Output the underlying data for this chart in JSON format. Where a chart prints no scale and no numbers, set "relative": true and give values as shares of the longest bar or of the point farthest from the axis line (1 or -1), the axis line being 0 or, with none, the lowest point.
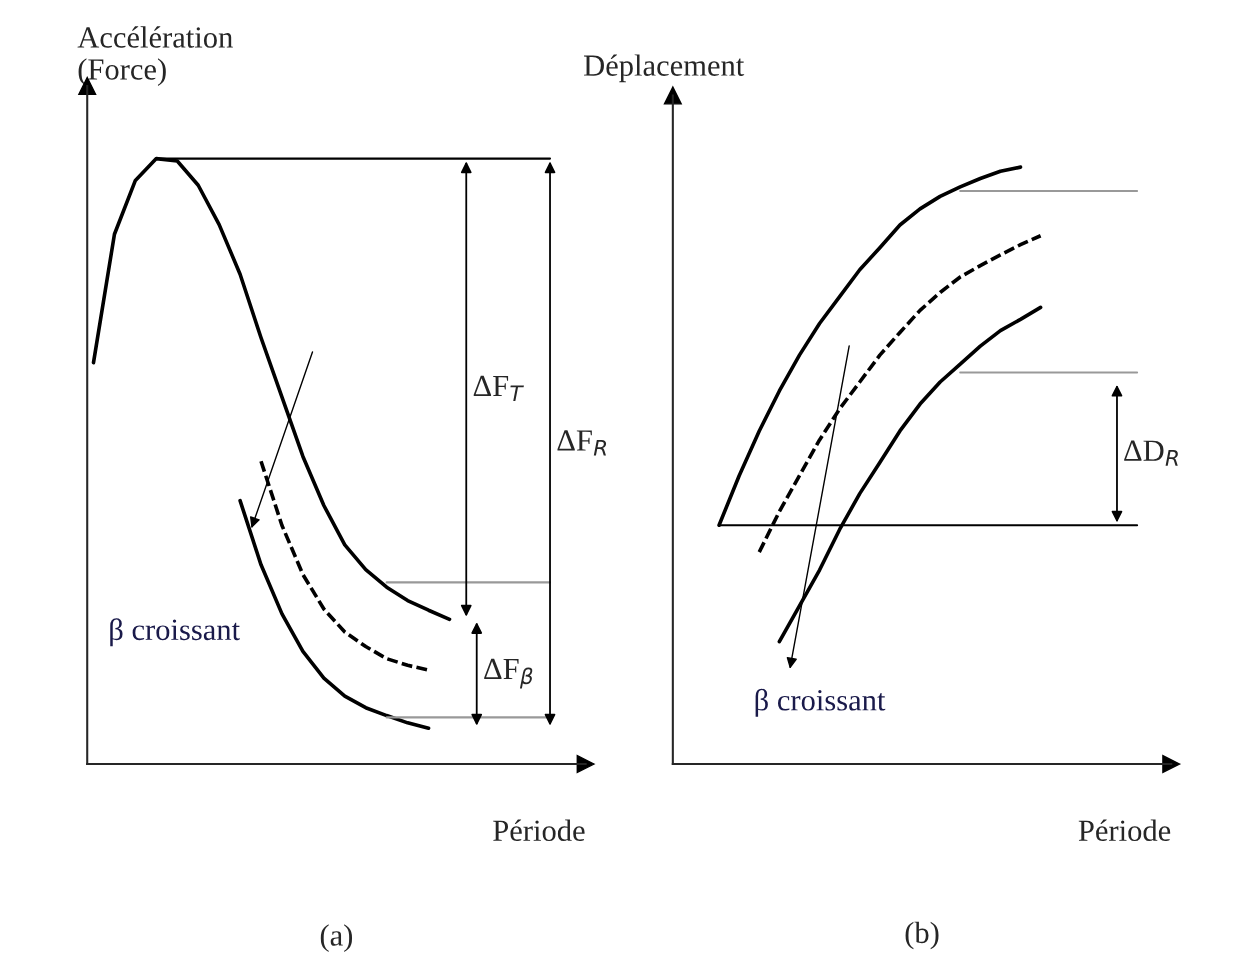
{
  "chart_data": [
    {
      "type": "line",
      "relative": true,
      "title": "(a)",
      "xlabel": "Période",
      "ylabel": "Accélération\n(Force)",
      "tick_labels": false,
      "grid": false,
      "legend": false,
      "categories": [
        null,
        null,
        null,
        null,
        null,
        null,
        null,
        null,
        null,
        null,
        null,
        null,
        null,
        null,
        null,
        null,
        null,
        null,
        null,
        null,
        null,
        null,
        null,
        null
      ],
      "series": [
        {
          "color": "#000000",
          "line_style": "solid",
          "values": [
            0.663,
            0.875,
            0.964,
            1,
            0.996,
            0.956,
            0.891,
            0.809,
            0.704,
            0.606,
            0.508,
            0.427,
            0.362,
            0.321,
            0.292,
            0.27,
            0.254,
            0.239,
            null,
            null,
            null,
            null,
            null,
            null
          ]
        },
        {
          "color": "#000000",
          "line_style": "dashed",
          "values": [
            null,
            null,
            null,
            null,
            null,
            null,
            null,
            null,
            0.5,
            0.394,
            0.313,
            0.256,
            0.218,
            0.194,
            0.174,
            0.163,
            0.155,
            null,
            null,
            null,
            null,
            null,
            null,
            null
          ]
        },
        {
          "color": "#000000",
          "line_style": "solid",
          "values": [
            null,
            null,
            null,
            null,
            null,
            null,
            null,
            0.435,
            0.329,
            0.248,
            0.186,
            0.142,
            0.112,
            0.093,
            0.08,
            0.068,
            0.059,
            null,
            null,
            null,
            null,
            null,
            null,
            null
          ]
        }
      ],
      "annotations": [
        "ΔF$_{T}$",
        "ΔF$_{R}$",
        "ΔF$_{β}$",
        "β croissant"
      ],
      "ref_lines": [
        {
          "axis": "y",
          "value": 1,
          "color": "#000000"
        },
        {
          "axis": "y",
          "value": 0.3,
          "color": "#999999"
        },
        {
          "axis": "y",
          "value": 0.077,
          "color": "#999999"
        }
      ]
    },
    {
      "type": "line",
      "relative": true,
      "title": "(b)",
      "xlabel": "Période",
      "ylabel": "Déplacement",
      "tick_labels": false,
      "grid": false,
      "legend": false,
      "categories": [
        null,
        null,
        null,
        null,
        null,
        null,
        null,
        null,
        null,
        null,
        null,
        null,
        null,
        null,
        null,
        null,
        null,
        null,
        null,
        null,
        null,
        null,
        null,
        null,
        null
      ],
      "series": [
        {
          "color": "#000000",
          "line_style": "solid",
          "values": [
            null,
            null,
            0.4,
            0.483,
            0.558,
            0.625,
            0.685,
            0.738,
            0.783,
            0.828,
            0.865,
            0.903,
            0.93,
            0.951,
            0.967,
            0.981,
            0.993,
            1,
            null,
            null,
            null,
            null,
            null,
            null,
            null
          ]
        },
        {
          "color": "#000000",
          "line_style": "dashed",
          "values": [
            null,
            null,
            null,
            null,
            0.355,
            0.423,
            0.483,
            0.543,
            0.595,
            0.64,
            0.685,
            0.723,
            0.76,
            0.79,
            0.816,
            0.835,
            0.853,
            0.87,
            0.885,
            null,
            null,
            null,
            null,
            null,
            null
          ]
        },
        {
          "color": "#000000",
          "line_style": "solid",
          "values": [
            null,
            null,
            null,
            null,
            null,
            0.205,
            0.265,
            0.325,
            0.393,
            0.453,
            0.505,
            0.558,
            0.603,
            0.64,
            0.67,
            0.7,
            0.726,
            0.745,
            0.765,
            null,
            null,
            null,
            null,
            null,
            null
          ]
        }
      ],
      "annotations": [
        "ΔD$_{R}$",
        "β croissant"
      ],
      "ref_lines": [
        {
          "axis": "y",
          "value": 0.4,
          "color": "#000000"
        },
        {
          "axis": "y",
          "value": 0.96,
          "color": "#999999"
        },
        {
          "axis": "y",
          "value": 0.656,
          "color": "#999999"
        }
      ]
    }
  ]
}
